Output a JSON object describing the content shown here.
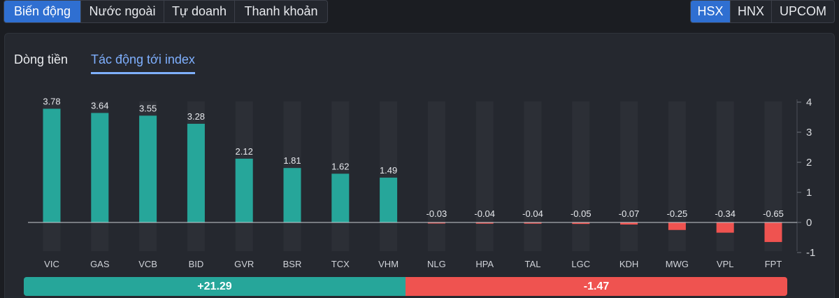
{
  "top_tabs": [
    {
      "label": "Biến động",
      "active": true
    },
    {
      "label": "Nước ngoài",
      "active": false
    },
    {
      "label": "Tự doanh",
      "active": false
    },
    {
      "label": "Thanh khoản",
      "active": false
    }
  ],
  "exchange_tabs": [
    {
      "label": "HSX",
      "active": true
    },
    {
      "label": "HNX",
      "active": false
    },
    {
      "label": "UPCOM",
      "active": false
    }
  ],
  "sub_tabs": [
    {
      "label": "Dòng tiền",
      "active": false
    },
    {
      "label": "Tác động tới index",
      "active": true
    }
  ],
  "colors": {
    "positive": "#26a69a",
    "negative": "#ef5350",
    "accent": "#2f6fd1",
    "subtab_active": "#7fb0ff"
  },
  "chart_data": {
    "type": "bar",
    "categories": [
      "VIC",
      "GAS",
      "VCB",
      "BID",
      "GVR",
      "BSR",
      "TCX",
      "VHM",
      "NLG",
      "HPA",
      "TAL",
      "LGC",
      "KDH",
      "MWG",
      "VPL",
      "FPT"
    ],
    "values": [
      3.78,
      3.64,
      3.55,
      3.28,
      2.12,
      1.81,
      1.62,
      1.49,
      -0.03,
      -0.04,
      -0.04,
      -0.05,
      -0.07,
      -0.25,
      -0.34,
      -0.65
    ],
    "data_labels": [
      "3.78",
      "3.64",
      "3.55",
      "3.28",
      "2.12",
      "1.81",
      "1.62",
      "1.49",
      "-0.03",
      "-0.04",
      "-0.04",
      "-0.05",
      "-0.07",
      "-0.25",
      "-0.34",
      "-0.65"
    ],
    "y_ticks": [
      4,
      3,
      2,
      1,
      0,
      -1
    ],
    "ylim": [
      -1,
      4
    ],
    "y_axis_position": "right",
    "grid": false
  },
  "summary": {
    "positive_total": "+21.29",
    "negative_total": "-1.47",
    "positive_share": 0.5
  }
}
